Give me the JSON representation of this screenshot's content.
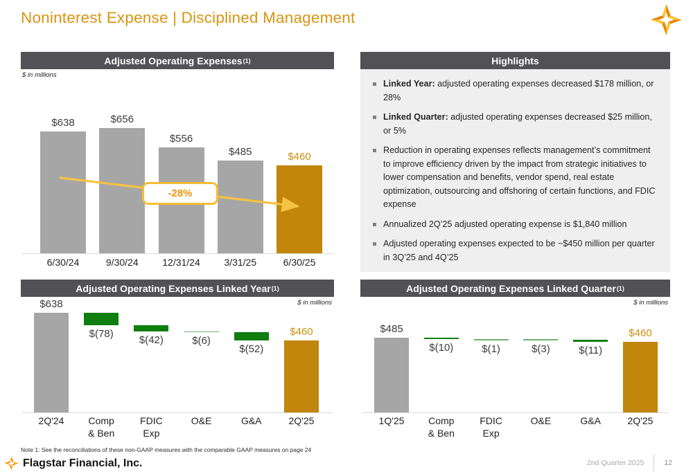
{
  "slide": {
    "title": "Noninterest Expense | Disciplined Management",
    "note": "Note 1: See the reconciliations of these non-GAAP measures with the comparable GAAP measures on page 24",
    "footer": {
      "company": "Flagstar Financial, Inc.",
      "period": "2nd Quarter 2025",
      "page": "12"
    }
  },
  "colors": {
    "accent_gold": "#C1860B",
    "gold_text": "#CE8F10",
    "bar_gray": "#A6A6A6",
    "bar_green": "#0F7E0F",
    "header_bg": "#515156",
    "title_gold": "#D89410",
    "arrow_gold": "#F6C243",
    "highlight_bg": "#EFEFEF"
  },
  "panels": {
    "trend": {
      "header": "Adjusted Operating Expenses",
      "sup": "(1)",
      "units": "$ in millions",
      "callout": "-28%"
    },
    "highlights": {
      "header": "Highlights",
      "items": [
        {
          "lead": "Linked Year:",
          "text": " adjusted operating expenses decreased $178 million, or 28%"
        },
        {
          "lead": "Linked Quarter:",
          "text": " adjusted operating expenses decreased $25 million, or 5%"
        },
        {
          "lead": "",
          "text": "Reduction in operating expenses reflects management’s commitment to improve efficiency driven by the impact from strategic initiatives to lower compensation and benefits, vendor spend, real estate optimization, outsourcing and offshoring of certain functions, and FDIC expense"
        },
        {
          "lead": "",
          "text": "Annualized 2Q’25 adjusted operating expense is $1,840 million"
        },
        {
          "lead": "",
          "text": "Adjusted operating expenses expected to be ~$450 million per quarter in 3Q’25 and 4Q’25"
        }
      ]
    },
    "linked_year": {
      "header": "Adjusted Operating Expenses Linked Year",
      "sup": "(1)",
      "units": "$ in millions"
    },
    "linked_quarter": {
      "header": "Adjusted Operating Expenses Linked Quarter",
      "sup": "(1)",
      "units": "$ in millions"
    }
  },
  "chart_data": [
    {
      "type": "bar",
      "title": "Adjusted Operating Expenses",
      "categories": [
        "6/30/24",
        "9/30/24",
        "12/31/24",
        "3/31/25",
        "6/30/25"
      ],
      "values": [
        638,
        656,
        556,
        485,
        460
      ],
      "labels": [
        "$638",
        "$656",
        "$556",
        "$485",
        "$460"
      ],
      "highlight_index": 4,
      "annotation": "-28%",
      "units": "$ in millions",
      "ylim": [
        0,
        656
      ],
      "grid": false,
      "legend": "none"
    },
    {
      "type": "bar",
      "subtype": "waterfall",
      "title": "Adjusted Operating Expenses Linked Year",
      "categories": [
        "2Q'24",
        "Comp\n& Ben",
        "FDIC\nExp",
        "O&E",
        "G&A",
        "2Q'25"
      ],
      "values": [
        638,
        -78,
        -42,
        -6,
        -52,
        460
      ],
      "labels": [
        "$638",
        "$(78)",
        "$(42)",
        "$(6)",
        "$(52)",
        "$460"
      ],
      "bar_roles": [
        "start",
        "delta",
        "delta",
        "delta",
        "delta",
        "end"
      ],
      "units": "$ in millions",
      "ylim": [
        0,
        638
      ],
      "grid": false,
      "legend": "none"
    },
    {
      "type": "bar",
      "subtype": "waterfall",
      "title": "Adjusted Operating Expenses Linked Quarter",
      "categories": [
        "1Q'25",
        "Comp\n& Ben",
        "FDIC\nExp",
        "O&E",
        "G&A",
        "2Q'25"
      ],
      "values": [
        485,
        -10,
        -1,
        -3,
        -11,
        460
      ],
      "labels": [
        "$485",
        "$(10)",
        "$(1)",
        "$(3)",
        "$(11)",
        "$460"
      ],
      "bar_roles": [
        "start",
        "delta",
        "delta",
        "delta",
        "delta",
        "end"
      ],
      "units": "$ in millions",
      "ylim": [
        0,
        485
      ],
      "grid": false,
      "legend": "none"
    }
  ]
}
